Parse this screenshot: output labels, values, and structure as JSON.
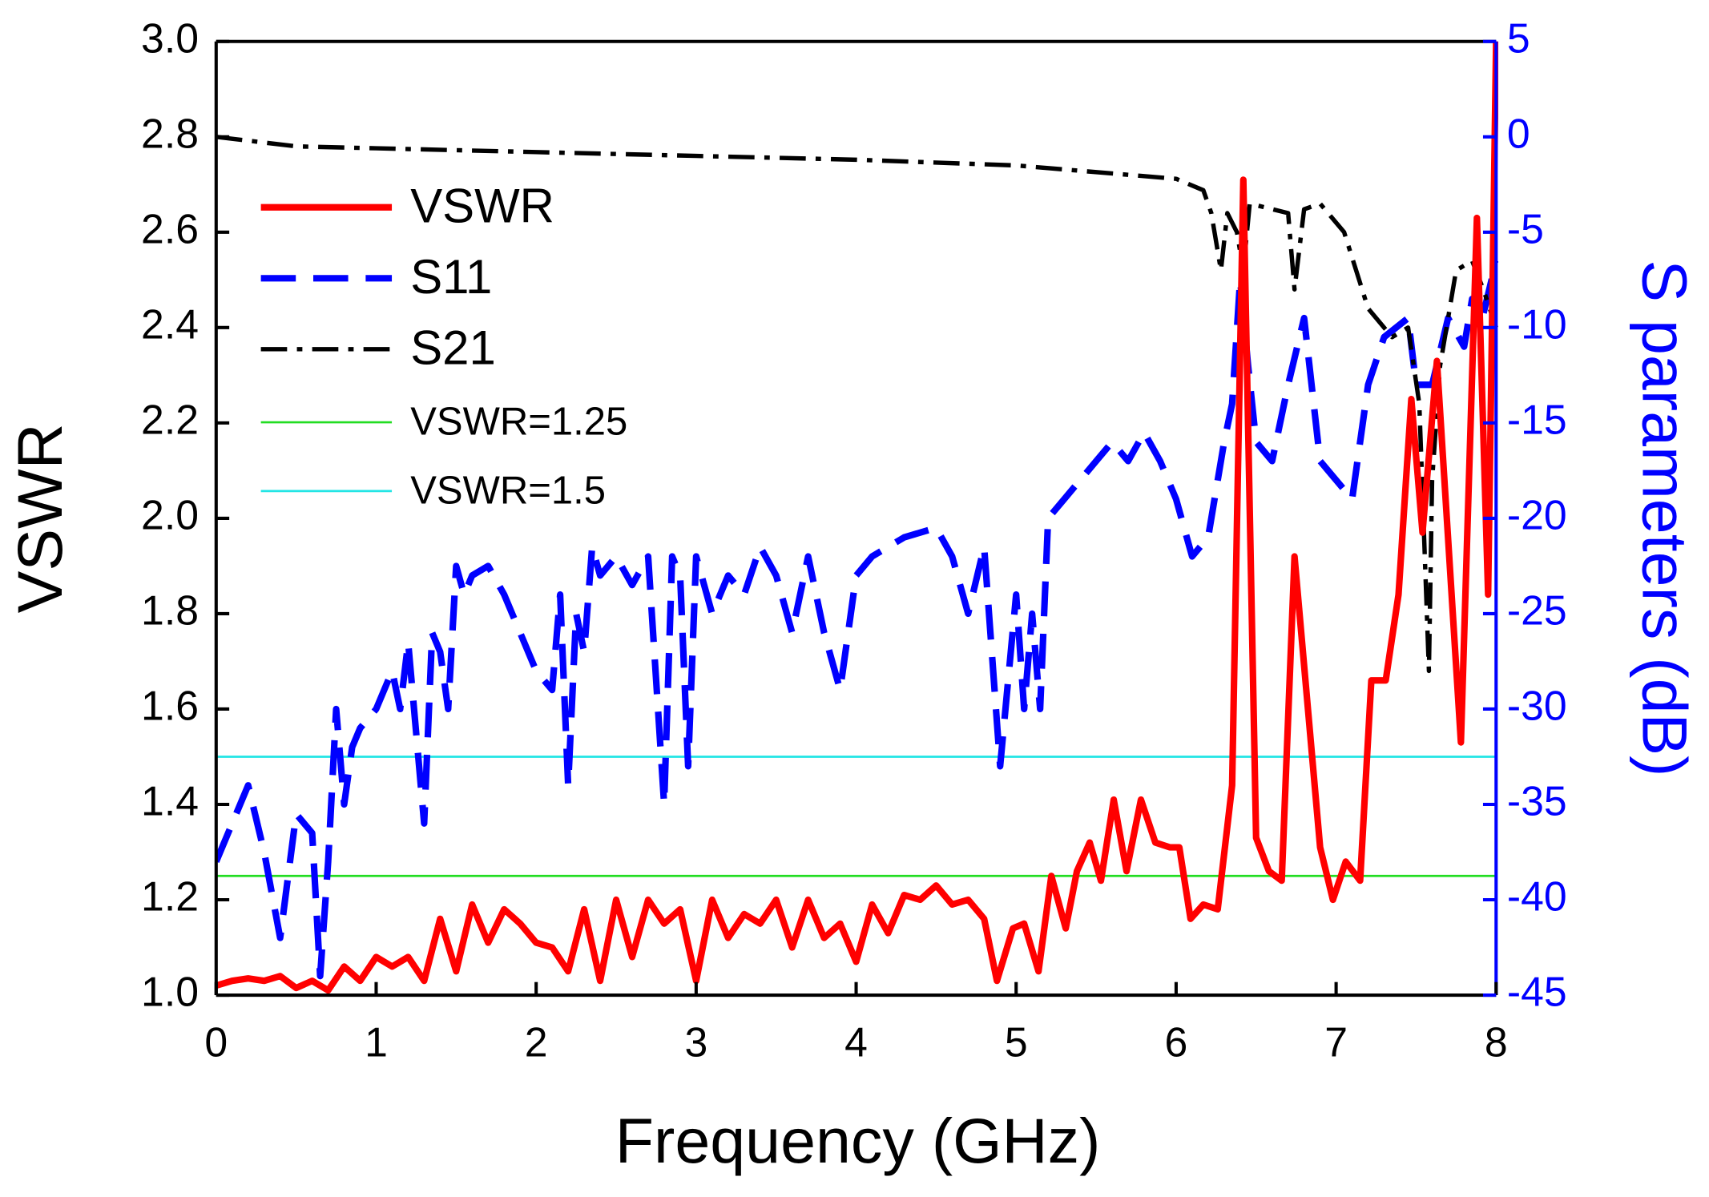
{
  "chart_data": {
    "type": "line",
    "xlabel": "Frequency (GHz)",
    "ylabel": "VSWR",
    "y2label": "S parameters (dB)",
    "xlim": [
      0,
      8
    ],
    "xticks": [
      0,
      1,
      2,
      3,
      4,
      5,
      6,
      7,
      8
    ],
    "ylim": [
      1.0,
      3.0
    ],
    "yticks": [
      {
        "value": 1.0,
        "label": "1.0"
      },
      {
        "value": 1.2,
        "label": "1.2"
      },
      {
        "value": 1.4,
        "label": "1.4"
      },
      {
        "value": 1.6,
        "label": "1.6"
      },
      {
        "value": 1.8,
        "label": "1.8"
      },
      {
        "value": 2.0,
        "label": "2.0"
      },
      {
        "value": 2.2,
        "label": "2.2"
      },
      {
        "value": 2.4,
        "label": "2.4"
      },
      {
        "value": 2.6,
        "label": "2.6"
      },
      {
        "value": 2.8,
        "label": "2.8"
      },
      {
        "value": 3.0,
        "label": "3.0"
      }
    ],
    "y2lim": [
      -45,
      5
    ],
    "y2ticks": [
      -45,
      -40,
      -35,
      -30,
      -25,
      -20,
      -15,
      -10,
      -5,
      0,
      5
    ],
    "y2color": "#0000ff",
    "legend": "upper left",
    "series": [
      {
        "name": "VSWR",
        "color": "#ff0000",
        "line_style": "solid",
        "axis": "y",
        "x": [
          0,
          0.1,
          0.2,
          0.3,
          0.4,
          0.5,
          0.6,
          0.7,
          0.8,
          0.9,
          1.0,
          1.1,
          1.2,
          1.3,
          1.4,
          1.5,
          1.6,
          1.7,
          1.8,
          1.9,
          2.0,
          2.1,
          2.2,
          2.3,
          2.4,
          2.5,
          2.6,
          2.7,
          2.8,
          2.9,
          3.0,
          3.1,
          3.2,
          3.3,
          3.4,
          3.5,
          3.6,
          3.7,
          3.8,
          3.9,
          4.0,
          4.1,
          4.2,
          4.3,
          4.4,
          4.5,
          4.6,
          4.7,
          4.8,
          4.88,
          4.98,
          5.05,
          5.14,
          5.22,
          5.31,
          5.38,
          5.46,
          5.53,
          5.61,
          5.69,
          5.78,
          5.87,
          5.96,
          6.02,
          6.09,
          6.17,
          6.26,
          6.35,
          6.42,
          6.5,
          6.58,
          6.66,
          6.74,
          6.9,
          6.98,
          7.06,
          7.15,
          7.22,
          7.31,
          7.39,
          7.47,
          7.54,
          7.63,
          7.78,
          7.88,
          7.95,
          8.0
        ],
        "values": [
          1.02,
          1.03,
          1.035,
          1.03,
          1.04,
          1.015,
          1.03,
          1.01,
          1.06,
          1.03,
          1.08,
          1.06,
          1.08,
          1.03,
          1.16,
          1.05,
          1.19,
          1.11,
          1.18,
          1.15,
          1.11,
          1.1,
          1.05,
          1.18,
          1.03,
          1.2,
          1.08,
          1.2,
          1.15,
          1.18,
          1.03,
          1.2,
          1.12,
          1.17,
          1.15,
          1.2,
          1.1,
          1.2,
          1.12,
          1.15,
          1.07,
          1.19,
          1.13,
          1.21,
          1.2,
          1.23,
          1.19,
          1.2,
          1.16,
          1.03,
          1.14,
          1.15,
          1.05,
          1.25,
          1.14,
          1.26,
          1.32,
          1.24,
          1.41,
          1.26,
          1.41,
          1.32,
          1.31,
          1.31,
          1.16,
          1.19,
          1.18,
          1.44,
          2.71,
          1.33,
          1.26,
          1.24,
          1.92,
          1.31,
          1.2,
          1.28,
          1.24,
          1.66,
          1.66,
          1.84,
          2.25,
          1.97,
          2.33,
          1.53,
          2.63,
          1.84,
          3.0
        ]
      },
      {
        "name": "S11",
        "color": "#0000ff",
        "line_style": "dash",
        "axis": "y2",
        "x": [
          0,
          0.2,
          0.3,
          0.4,
          0.5,
          0.6,
          0.65,
          0.7,
          0.75,
          0.8,
          0.85,
          0.9,
          1.0,
          1.1,
          1.15,
          1.2,
          1.3,
          1.35,
          1.4,
          1.45,
          1.5,
          1.55,
          1.6,
          1.7,
          1.8,
          2.0,
          2.1,
          2.15,
          2.2,
          2.25,
          2.3,
          2.35,
          2.4,
          2.5,
          2.6,
          2.7,
          2.8,
          2.85,
          2.9,
          2.95,
          3.0,
          3.1,
          3.2,
          3.3,
          3.4,
          3.5,
          3.6,
          3.7,
          3.8,
          3.9,
          4.0,
          4.1,
          4.3,
          4.5,
          4.6,
          4.7,
          4.8,
          4.9,
          5.0,
          5.05,
          5.1,
          5.15,
          5.2,
          5.3,
          5.4,
          5.5,
          5.6,
          5.7,
          5.8,
          5.9,
          6.0,
          6.1,
          6.2,
          6.3,
          6.35,
          6.4,
          6.45,
          6.5,
          6.6,
          6.7,
          6.8,
          6.9,
          7.0,
          7.1,
          7.2,
          7.3,
          7.45,
          7.5,
          7.6,
          7.7,
          7.8,
          7.85,
          7.9,
          8.0
        ],
        "values": [
          -38,
          -34,
          -37.5,
          -42,
          -35.5,
          -36.5,
          -44,
          -38,
          -30,
          -35,
          -32,
          -31,
          -30,
          -28,
          -30,
          -26.5,
          -36,
          -26,
          -27,
          -30,
          -22.5,
          -24,
          -23,
          -22.5,
          -24,
          -28,
          -29,
          -24,
          -34,
          -25,
          -27,
          -21.5,
          -23,
          -22,
          -23.5,
          -22,
          -35,
          -22,
          -23,
          -33,
          -22,
          -25,
          -23,
          -24,
          -21.5,
          -23,
          -26,
          -22,
          -26,
          -29,
          -23,
          -22,
          -21,
          -20.5,
          -22,
          -25,
          -21.5,
          -33,
          -24,
          -30,
          -25,
          -30,
          -20,
          -19,
          -18,
          -17,
          -16,
          -17,
          -15.5,
          -17,
          -19,
          -22,
          -21,
          -16,
          -14,
          -7.5,
          -12,
          -16,
          -17,
          -13,
          -9.5,
          -17,
          -18,
          -19,
          -13,
          -10.5,
          -9.5,
          -13,
          -13,
          -9.5,
          -11,
          -8.5,
          -10,
          -6.5
        ]
      },
      {
        "name": "S21",
        "color": "#000000",
        "line_style": "dashdot",
        "axis": "y2",
        "x": [
          0,
          0.5,
          1,
          2,
          3,
          4,
          5,
          6,
          6.17,
          6.22,
          6.28,
          6.32,
          6.38,
          6.42,
          6.46,
          6.7,
          6.74,
          6.8,
          6.9,
          7.05,
          7.2,
          7.35,
          7.45,
          7.52,
          7.58,
          7.6,
          7.65,
          7.75,
          7.85,
          7.92,
          8.0
        ],
        "values": [
          0,
          -0.5,
          -0.6,
          -0.8,
          -1,
          -1.2,
          -1.5,
          -2.2,
          -2.8,
          -4,
          -7,
          -4,
          -5,
          -7,
          -3.5,
          -4,
          -8,
          -3.8,
          -3.5,
          -5,
          -9,
          -10.5,
          -10,
          -14,
          -28,
          -18,
          -12,
          -7,
          -6.5,
          -8,
          -10
        ]
      },
      {
        "name": "VSWR=1.25",
        "color": "#22dd22",
        "line_style": "thin",
        "axis": "y",
        "x": [
          0,
          8
        ],
        "values": [
          1.25,
          1.25
        ]
      },
      {
        "name": "VSWR=1.5",
        "color": "#22e5e5",
        "line_style": "thin",
        "axis": "y",
        "x": [
          0,
          8
        ],
        "values": [
          1.5,
          1.5
        ]
      }
    ]
  }
}
